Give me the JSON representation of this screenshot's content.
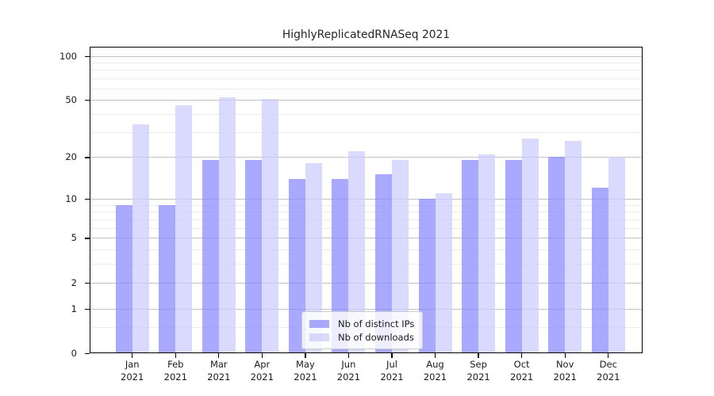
{
  "chart_data": {
    "type": "bar",
    "title": "HighlyReplicatedRNASeq 2021",
    "categories": [
      "Jan 2021",
      "Feb 2021",
      "Mar 2021",
      "Apr 2021",
      "May 2021",
      "Jun 2021",
      "Jul 2021",
      "Aug 2021",
      "Sep 2021",
      "Oct 2021",
      "Nov 2021",
      "Dec 2021"
    ],
    "month_labels": [
      "Jan",
      "Feb",
      "Mar",
      "Apr",
      "May",
      "Jun",
      "Jul",
      "Aug",
      "Sep",
      "Oct",
      "Nov",
      "Dec"
    ],
    "year_label": "2021",
    "series": [
      {
        "name": "Nb of distinct IPs",
        "color": "rgba(136,136,255,0.72)",
        "values": [
          9,
          9,
          19,
          19,
          14,
          14,
          15,
          10,
          19,
          19,
          20,
          12
        ]
      },
      {
        "name": "Nb of downloads",
        "color": "rgba(204,204,255,0.72)",
        "values": [
          34,
          46,
          52,
          51,
          18,
          22,
          19,
          11,
          21,
          27,
          26,
          20
        ]
      }
    ],
    "xlabel": "",
    "ylabel": "",
    "yscale": "log1p",
    "ylim": [
      0,
      115.3
    ],
    "yticks_major": [
      0,
      1,
      2,
      5,
      10,
      20,
      50,
      100
    ],
    "yticks_minor": [
      0.5,
      3,
      4,
      6,
      7,
      8,
      9,
      30,
      40,
      60,
      70,
      80,
      90
    ],
    "grid": true,
    "legend_position": "lower center"
  },
  "colors": {
    "background": "#ffffff",
    "spine": "#000000",
    "grid_major": "#c2c2c2",
    "grid_minor": "#ececec",
    "text": "#1a1a1a"
  }
}
